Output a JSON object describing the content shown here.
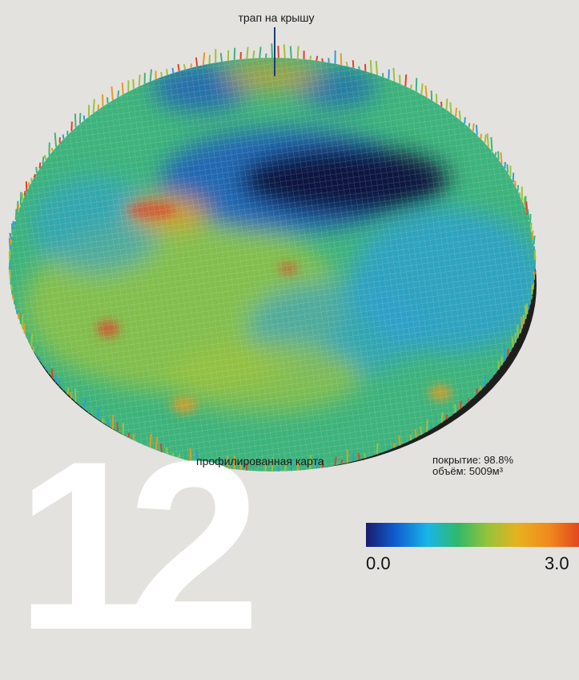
{
  "callout": {
    "text": "трап на крышу"
  },
  "caption": {
    "text": "профилированная карта"
  },
  "stats": {
    "coverage": "покрытие: 98.8%",
    "volume": "объём: 5009м³"
  },
  "big_number": "12",
  "scale": {
    "min_label": "0.0",
    "max_label": "3.0",
    "colors": [
      "#1a1c6e",
      "#0f5fd0",
      "#19b6e8",
      "#2fb86b",
      "#96c23a",
      "#e7b21e",
      "#f08a1c",
      "#e2471c"
    ]
  },
  "map_colors": {
    "deep": "#0b1541",
    "low": "#1f5fb8",
    "mid_low": "#2d9fd0",
    "mid": "#3eb37c",
    "mid_high": "#9ac23e",
    "high": "#e79a22",
    "peak": "#d9452a",
    "base": "#1e1e1e"
  }
}
